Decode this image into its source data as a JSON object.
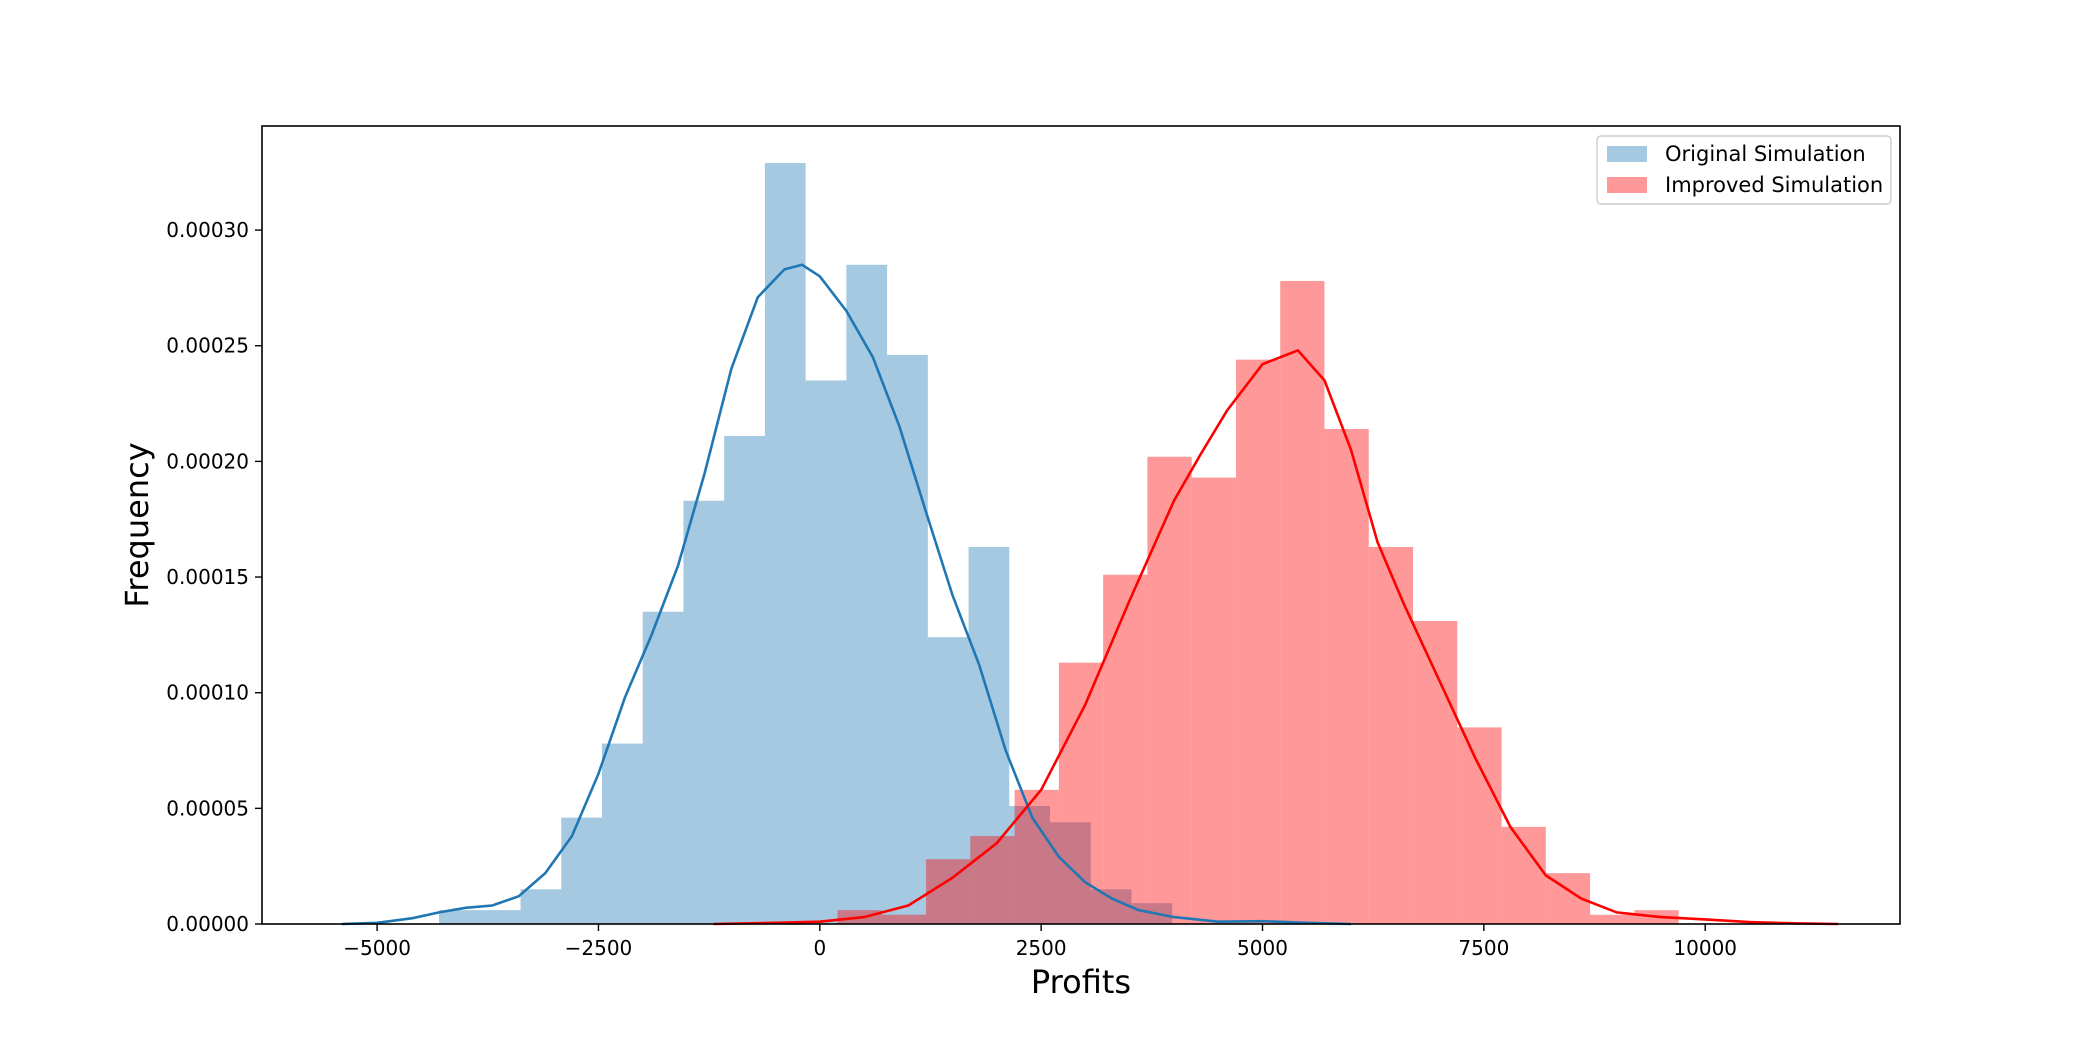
{
  "chart_data": {
    "type": "histogram",
    "xlabel": "Profits",
    "ylabel": "Frequency",
    "xlim": [
      -6300,
      12200
    ],
    "ylim": [
      0,
      0.000345
    ],
    "grid": false,
    "legend_position": "top-right",
    "x_ticks": [
      -5000,
      -2500,
      0,
      2500,
      5000,
      7500,
      10000
    ],
    "x_tick_labels": [
      "−5000",
      "−2500",
      "0",
      "2500",
      "5000",
      "7500",
      "10000"
    ],
    "y_ticks": [
      0,
      5e-05,
      0.0001,
      0.00015,
      0.0002,
      0.00025,
      0.0003
    ],
    "y_tick_labels": [
      "0.00000",
      "0.00005",
      "0.00010",
      "0.00015",
      "0.00020",
      "0.00025",
      "0.00030"
    ],
    "series": [
      {
        "name": "Original Simulation",
        "bar_color": "#1f77b4",
        "bar_opacity": 0.4,
        "line_color": "#1f77b4",
        "bin_edges": [
          -4300,
          -3840,
          -3380,
          -2920,
          -2460,
          -2000,
          -1540,
          -1080,
          -620,
          -160,
          300,
          760,
          1220,
          1680,
          2140,
          2600,
          3060,
          3520,
          3980
        ],
        "densities": [
          6e-06,
          6e-06,
          1.5e-05,
          4.6e-05,
          7.8e-05,
          0.000135,
          0.000183,
          0.000211,
          0.000329,
          0.000235,
          0.000285,
          0.000246,
          0.000124,
          0.000163,
          5.1e-05,
          4.4e-05,
          1.5e-05,
          9e-06
        ],
        "kde_x": [
          -5400,
          -5000,
          -4600,
          -4300,
          -4000,
          -3700,
          -3400,
          -3100,
          -2800,
          -2500,
          -2200,
          -1900,
          -1600,
          -1300,
          -1000,
          -700,
          -400,
          -200,
          0,
          300,
          600,
          900,
          1200,
          1500,
          1800,
          2100,
          2400,
          2700,
          3000,
          3300,
          3600,
          4000,
          4500,
          5000,
          5500,
          6000
        ],
        "kde_y": [
          0.0,
          5e-07,
          2.5e-06,
          5e-06,
          7e-06,
          8e-06,
          1.2e-05,
          2.2e-05,
          3.8e-05,
          6.5e-05,
          9.8e-05,
          0.000125,
          0.000155,
          0.000195,
          0.00024,
          0.000271,
          0.000283,
          0.000285,
          0.00028,
          0.000265,
          0.000245,
          0.000215,
          0.000178,
          0.000142,
          0.000112,
          7.5e-05,
          4.6e-05,
          2.9e-05,
          1.8e-05,
          1.1e-05,
          6e-06,
          3e-06,
          1e-06,
          1.2e-06,
          5e-07,
          0.0
        ],
        "legend_label": "Original Simulation"
      },
      {
        "name": "Improved Simulation",
        "bar_color": "#ff0000",
        "bar_opacity": 0.4,
        "line_color": "#ff0000",
        "bin_edges": [
          200,
          700,
          1200,
          1700,
          2200,
          2700,
          3200,
          3700,
          4200,
          4700,
          5200,
          5700,
          6200,
          6700,
          7200,
          7700,
          8200,
          8700,
          9200,
          9700
        ],
        "densities": [
          6e-06,
          4e-06,
          2.8e-05,
          3.8e-05,
          5.8e-05,
          0.000113,
          0.000151,
          0.000202,
          0.000193,
          0.000244,
          0.000278,
          0.000214,
          0.000163,
          0.000131,
          8.5e-05,
          4.2e-05,
          2.2e-05,
          4e-06,
          6e-06
        ],
        "kde_x": [
          -1200,
          -500,
          0,
          500,
          1000,
          1500,
          2000,
          2500,
          3000,
          3500,
          4000,
          4300,
          4600,
          5000,
          5400,
          5700,
          6000,
          6300,
          6600,
          7000,
          7400,
          7800,
          8200,
          8600,
          9000,
          9500,
          10000,
          10500,
          11000,
          11500
        ],
        "kde_y": [
          0.0,
          5e-07,
          1e-06,
          3e-06,
          8e-06,
          2e-05,
          3.5e-05,
          5.8e-05,
          9.5e-05,
          0.00014,
          0.000183,
          0.000203,
          0.000222,
          0.000242,
          0.000248,
          0.000235,
          0.000205,
          0.000165,
          0.000138,
          0.000105,
          7.2e-05,
          4.2e-05,
          2.1e-05,
          1.1e-05,
          5e-06,
          3e-06,
          2e-06,
          8e-07,
          3e-07,
          0.0
        ],
        "legend_label": "Improved Simulation"
      }
    ]
  }
}
